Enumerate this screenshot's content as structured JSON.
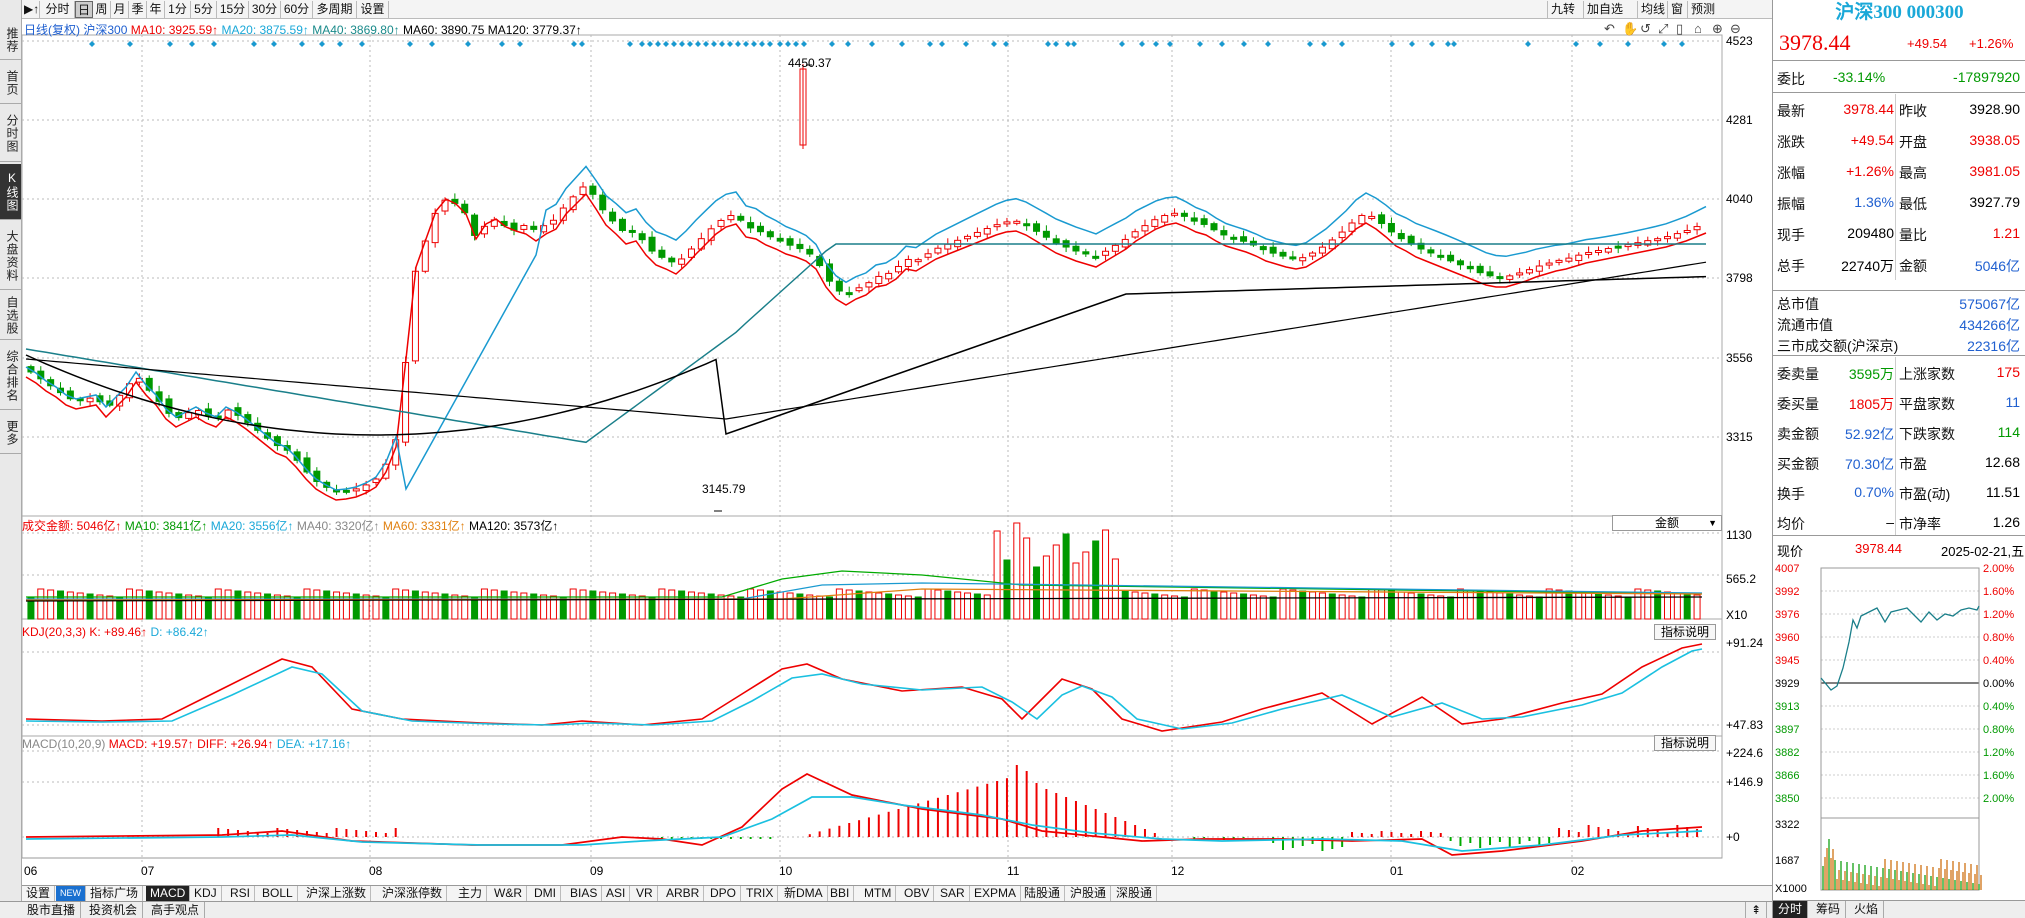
{
  "left_nav": [
    "推荐",
    "首页",
    "分时图",
    "K线图",
    "大盘资料",
    "自选股",
    "综合排名",
    "更多"
  ],
  "toolbar": {
    "back_glyph": "▶↑",
    "periods": [
      "分时",
      "日",
      "周",
      "月",
      "季",
      "年",
      "1分",
      "5分",
      "15分",
      "30分",
      "60分",
      "多周期",
      "设置"
    ],
    "active_period": "日",
    "right_items": [
      "九转",
      "加自选",
      "均线",
      "窗",
      "预测"
    ],
    "right_icons": [
      "undo-icon",
      "back-icon",
      "hand-icon",
      "pan-icon",
      "lock-icon",
      "home-icon",
      "zoom-in-icon",
      "zoom-out-icon"
    ]
  },
  "kline": {
    "header": {
      "name": "日线(复权)",
      "code": "沪深300",
      "ma10": "MA10: 3925.59↑",
      "ma20": "MA20: 3875.59↑",
      "ma40": "MA40: 3869.80↑",
      "ma60": "MA60: 3890.75",
      "ma120": "MA120: 3779.37↑"
    },
    "y_labels": [
      "4523",
      "4281",
      "4040",
      "3798",
      "3556",
      "3315"
    ],
    "annotations": {
      "high": "4450.37",
      "low": "3145.79"
    },
    "x_labels": [
      "06",
      "07",
      "08",
      "09",
      "10",
      "11",
      "12",
      "01",
      "02"
    ]
  },
  "volume": {
    "header": {
      "title": "成交金额: 5046亿↑",
      "ma10": "MA10: 3841亿↑",
      "ma20": "MA20: 3556亿↑",
      "ma40": "MA40: 3320亿↑",
      "ma60": "MA60: 3331亿↑",
      "ma120": "MA120: 3573亿↑"
    },
    "selector": "金额",
    "y_labels": [
      "1130",
      "565.2",
      "X10"
    ]
  },
  "kdj": {
    "header": {
      "title": "KDJ(20,3,3)",
      "k": "K: +89.46↑",
      "d": "D: +86.42↑"
    },
    "button": "指标说明",
    "y_labels": [
      "+91.24",
      "+47.83"
    ]
  },
  "macd": {
    "header": {
      "title": "MACD(10,20,9)",
      "macd": "MACD: +19.57↑",
      "diff": "DIFF: +26.94↑",
      "dea": "DEA: +17.16↑"
    },
    "button": "指标说明",
    "y_labels": [
      "+224.6",
      "+146.9",
      "+0"
    ]
  },
  "indicator_tabs": [
    "设置",
    "指标广场",
    "MACD",
    "KDJ",
    "RSI",
    "BOLL",
    "沪深上涨数",
    "沪深涨停数",
    "主力",
    "W&R",
    "DMI",
    "BIAS",
    "ASI",
    "VR",
    "ARBR",
    "DPO",
    "TRIX",
    "新DMA",
    "BBI",
    "MTM",
    "OBV",
    "SAR",
    "EXPMA",
    "陆股通",
    "沪股通",
    "深股通"
  ],
  "active_indicator": "MACD",
  "new_badge": "NEW",
  "bottom_tabs": [
    "股市直播",
    "投资机会",
    "高手观点"
  ],
  "right_panel": {
    "title": "沪深300 000300",
    "price": "3978.44",
    "change": "+49.54",
    "change_pct": "+1.26%",
    "ratio_row": {
      "label": "委比",
      "v1": "-33.14%",
      "v2": "-17897920"
    },
    "stats": [
      {
        "l1": "最新",
        "v1": "3978.44",
        "c1": "red",
        "l2": "昨收",
        "v2": "3928.90",
        "c2": "blk"
      },
      {
        "l1": "涨跌",
        "v1": "+49.54",
        "c1": "red",
        "l2": "开盘",
        "v2": "3938.05",
        "c2": "red"
      },
      {
        "l1": "涨幅",
        "v1": "+1.26%",
        "c1": "red",
        "l2": "最高",
        "v2": "3981.05",
        "c2": "red"
      },
      {
        "l1": "振幅",
        "v1": "1.36%",
        "c1": "blu",
        "l2": "最低",
        "v2": "3927.79",
        "c2": "blk"
      },
      {
        "l1": "现手",
        "v1": "209480",
        "c1": "blk",
        "l2": "量比",
        "v2": "1.21",
        "c2": "red"
      },
      {
        "l1": "总手",
        "v1": "22740万",
        "c1": "blk",
        "l2": "金额",
        "v2": "5046亿",
        "c2": "blu"
      }
    ],
    "market": [
      {
        "l": "总市值",
        "v": "575067亿"
      },
      {
        "l": "流通市值",
        "v": "434266亿"
      },
      {
        "l": "三市成交额(沪深京)",
        "v": "22316亿"
      }
    ],
    "stats2": [
      {
        "l1": "委卖量",
        "v1": "3595万",
        "c1": "grn",
        "l2": "上涨家数",
        "v2": "175",
        "c2": "red"
      },
      {
        "l1": "委买量",
        "v1": "1805万",
        "c1": "red",
        "l2": "平盘家数",
        "v2": "11",
        "c2": "blu"
      },
      {
        "l1": "卖金额",
        "v1": "52.92亿",
        "c1": "blu",
        "l2": "下跌家数",
        "v2": "114",
        "c2": "grn"
      },
      {
        "l1": "买金额",
        "v1": "70.30亿",
        "c1": "blu",
        "l2": "市盈",
        "v2": "12.68",
        "c2": "blk"
      },
      {
        "l1": "换手",
        "v1": "0.70%",
        "c1": "blu",
        "l2": "市盈(动)",
        "v2": "11.51",
        "c2": "blk"
      },
      {
        "l1": "均价",
        "v1": "–",
        "c1": "blk",
        "l2": "市净率",
        "v2": "1.26",
        "c2": "blk"
      }
    ],
    "mini": {
      "label": "现价",
      "price": "3978.44",
      "date": "2025-02-21,五",
      "y_left": [
        "4007",
        "3992",
        "3976",
        "3960",
        "3945",
        "3929",
        "3913",
        "3897",
        "3882",
        "3866",
        "3850"
      ],
      "y_right": [
        "2.00%",
        "1.60%",
        "1.20%",
        "0.80%",
        "0.40%",
        "0.00%",
        "0.40%",
        "0.80%",
        "1.20%",
        "1.60%",
        "2.00%"
      ],
      "vol_labels": [
        "3322",
        "1687",
        "X1000"
      ]
    },
    "bottom_tabs": [
      "分时",
      "筹码",
      "火焰"
    ]
  }
}
